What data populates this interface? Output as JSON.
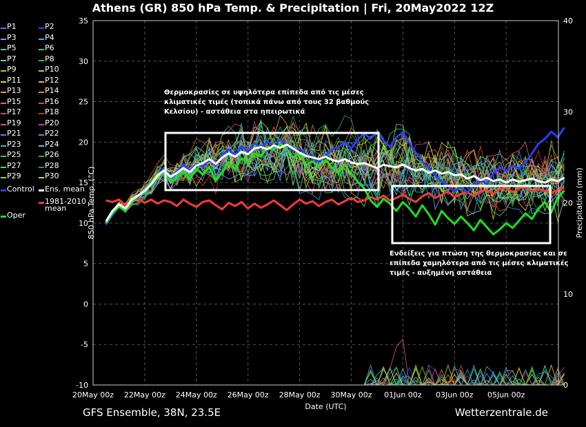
{
  "title": "Athens  (GR)  850 hPa Temp. & Precipitation | Fri, 20May2022 12Z",
  "footer": {
    "model": "GFS Ensemble, 38N, 23.5E",
    "source": "Wetterzentrale.de"
  },
  "annotations": {
    "upper": "Θερμοκρασίες σε υψηλότερα επίπεδα από τις μέσες κλιματικές τιμές (τοπικά πάνω από τους 32 βαθμούς Κελσίου) - αστάθεια στα ηπειρωτικά",
    "lower": "Ενδείξεις για πτώση της θερμοκρασίας και σε επίπεδα χαμηλότερα από τις μέσες κλιματικές τιμές - αυξημένη αστάθεια"
  },
  "legend": [
    {
      "label": "P1",
      "color": "#4a7fff"
    },
    {
      "label": "P2",
      "color": "#2b4dff"
    },
    {
      "label": "P3",
      "color": "#6f9cff"
    },
    {
      "label": "P4",
      "color": "#3db8ff"
    },
    {
      "label": "P5",
      "color": "#2bd1c9"
    },
    {
      "label": "P6",
      "color": "#39d470"
    },
    {
      "label": "P7",
      "color": "#4fe0a0"
    },
    {
      "label": "P8",
      "color": "#2ec24a"
    },
    {
      "label": "P9",
      "color": "#7ee62a"
    },
    {
      "label": "P10",
      "color": "#9ee64a"
    },
    {
      "label": "P11",
      "color": "#d8e03a"
    },
    {
      "label": "P12",
      "color": "#e8c82a"
    },
    {
      "label": "P13",
      "color": "#e8a030"
    },
    {
      "label": "P14",
      "color": "#e88a2a"
    },
    {
      "label": "P15",
      "color": "#e0703a"
    },
    {
      "label": "P16",
      "color": "#d85a2a"
    },
    {
      "label": "P17",
      "color": "#e04a3a"
    },
    {
      "label": "P18",
      "color": "#c8342a"
    },
    {
      "label": "P19",
      "color": "#e0508a"
    },
    {
      "label": "P20",
      "color": "#c840a8"
    },
    {
      "label": "P21",
      "color": "#4a90e0"
    },
    {
      "label": "P22",
      "color": "#3aa0e8"
    },
    {
      "label": "P23",
      "color": "#38b8d8"
    },
    {
      "label": "P24",
      "color": "#5ac8e8"
    },
    {
      "label": "P25",
      "color": "#38c898"
    },
    {
      "label": "P26",
      "color": "#30b060"
    },
    {
      "label": "P27",
      "color": "#58d878"
    },
    {
      "label": "P28",
      "color": "#28a840"
    },
    {
      "label": "P29",
      "color": "#a0d840"
    },
    {
      "label": "P30",
      "color": "#d8d040"
    },
    {
      "label": "Control",
      "color": "#2b3dff"
    },
    {
      "label": "Ens. mean",
      "color": "#ffffff"
    },
    {
      "label": "Oper",
      "color": "#22dd22"
    },
    {
      "label": "1981-2010\nmean",
      "color": "#ff3a3a"
    }
  ],
  "chart_data": {
    "type": "line",
    "title": "Athens  (GR)  850 hPa Temp. & Precipitation | Fri, 20May2022 12Z",
    "xlabel": "Date (UTC)",
    "ylabel": "850 hPa Temp. (°C)",
    "ylabel_right": "Precipitation (mm)",
    "x_ticks": [
      "20May 00z",
      "22May 00z",
      "24May 00z",
      "26May 00z",
      "28May 00z",
      "30May 00z",
      "01Jun 00z",
      "03Jun 00z",
      "05Jun 00z"
    ],
    "x_range_days": [
      0,
      16.5
    ],
    "ylim": [
      -10,
      35
    ],
    "y_ticks": [
      -10,
      -5,
      0,
      5,
      10,
      15,
      20,
      25,
      30,
      35
    ],
    "y2lim": [
      0,
      40
    ],
    "y2_ticks": [
      0,
      10,
      20,
      30,
      40
    ],
    "grid": true,
    "start_day": 0.5,
    "step_days": 0.25,
    "series": [
      {
        "name": "Ens. mean",
        "color": "#ffffff",
        "width": 3,
        "values": [
          10.2,
          11.5,
          12.3,
          11.8,
          12.9,
          13.4,
          14.0,
          14.8,
          15.9,
          16.5,
          15.7,
          16.2,
          16.8,
          16.3,
          17.1,
          17.4,
          17.9,
          17.3,
          18.1,
          18.6,
          18.2,
          18.8,
          18.5,
          19.2,
          19.4,
          19.1,
          19.6,
          19.3,
          19.7,
          19.2,
          18.7,
          18.3,
          18.1,
          17.9,
          18.2,
          17.8,
          17.6,
          17.9,
          17.5,
          17.3,
          17.4,
          17.1,
          16.8,
          17.2,
          17.0,
          16.9,
          17.2,
          16.8,
          16.5,
          16.7,
          16.2,
          16.5,
          16.1,
          16.3,
          15.9,
          16.0,
          15.5,
          15.8,
          15.3,
          15.6,
          15.2,
          15.4,
          15.0,
          15.4,
          15.1,
          15.3,
          15.5,
          15.2,
          15.0,
          15.4,
          15.2,
          15.6
        ]
      },
      {
        "name": "Oper",
        "color": "#22dd22",
        "width": 3,
        "values": [
          10.0,
          11.2,
          12.0,
          11.6,
          12.5,
          13.4,
          14.2,
          15.1,
          16.0,
          16.3,
          15.1,
          15.6,
          16.4,
          15.4,
          16.7,
          16.0,
          16.9,
          15.2,
          16.3,
          17.5,
          16.6,
          18.0,
          17.5,
          18.6,
          18.2,
          19.4,
          19.0,
          19.8,
          19.2,
          18.1,
          18.7,
          17.2,
          17.6,
          17.0,
          17.8,
          16.9,
          16.2,
          17.2,
          16.1,
          15.1,
          14.3,
          12.8,
          12.0,
          13.0,
          12.4,
          11.5,
          12.6,
          11.8,
          10.8,
          12.2,
          11.1,
          9.8,
          11.5,
          10.6,
          9.9,
          10.8,
          10.0,
          9.1,
          10.4,
          9.5,
          8.6,
          9.2,
          10.0,
          9.4,
          10.3,
          11.2,
          10.5,
          11.8,
          12.6,
          11.3,
          13.2,
          14.0
        ]
      },
      {
        "name": "Control",
        "color": "#2b3dff",
        "width": 3,
        "values": [
          9.8,
          11.0,
          12.1,
          11.7,
          12.7,
          13.2,
          14.3,
          15.2,
          15.9,
          16.8,
          15.6,
          16.4,
          17.2,
          16.5,
          17.3,
          17.0,
          17.8,
          17.1,
          18.4,
          19.1,
          18.3,
          19.5,
          18.8,
          19.9,
          19.3,
          20.1,
          19.5,
          20.4,
          19.6,
          18.9,
          19.2,
          18.4,
          18.1,
          17.6,
          18.3,
          19.1,
          19.4,
          20.0,
          19.2,
          20.3,
          21.1,
          20.4,
          21.3,
          20.2,
          19.4,
          20.6,
          21.2,
          19.9,
          18.7,
          17.6,
          16.8,
          15.9,
          15.1,
          14.6,
          13.9,
          14.5,
          13.8,
          14.6,
          15.4,
          14.8,
          16.1,
          16.9,
          16.4,
          17.1,
          16.7,
          17.5,
          18.6,
          19.8,
          20.4,
          21.3,
          20.6,
          21.8
        ]
      },
      {
        "name": "1981-2010\nmean",
        "color": "#ff3a3a",
        "width": 3,
        "values": [
          12.8,
          12.6,
          12.9,
          12.2,
          12.8,
          13.0,
          12.5,
          12.9,
          12.4,
          12.8,
          12.6,
          12.1,
          12.9,
          12.4,
          12.0,
          12.6,
          12.8,
          12.2,
          11.7,
          12.5,
          12.1,
          12.6,
          11.8,
          12.4,
          11.9,
          12.3,
          12.8,
          12.2,
          11.6,
          12.3,
          12.9,
          12.4,
          12.7,
          12.1,
          12.6,
          12.9,
          12.3,
          12.7,
          13.1,
          12.6,
          12.8,
          13.2,
          12.9,
          13.4,
          12.8,
          13.1,
          13.5,
          13.0,
          12.6,
          13.3,
          13.7,
          13.1,
          13.5,
          13.9,
          13.2,
          13.6,
          13.8,
          13.3,
          13.9,
          14.1,
          13.6,
          14.2,
          14.4,
          13.8,
          14.3,
          14.5,
          13.9,
          14.2,
          14.0,
          13.7,
          14.1,
          14.4
        ]
      }
    ]
  }
}
